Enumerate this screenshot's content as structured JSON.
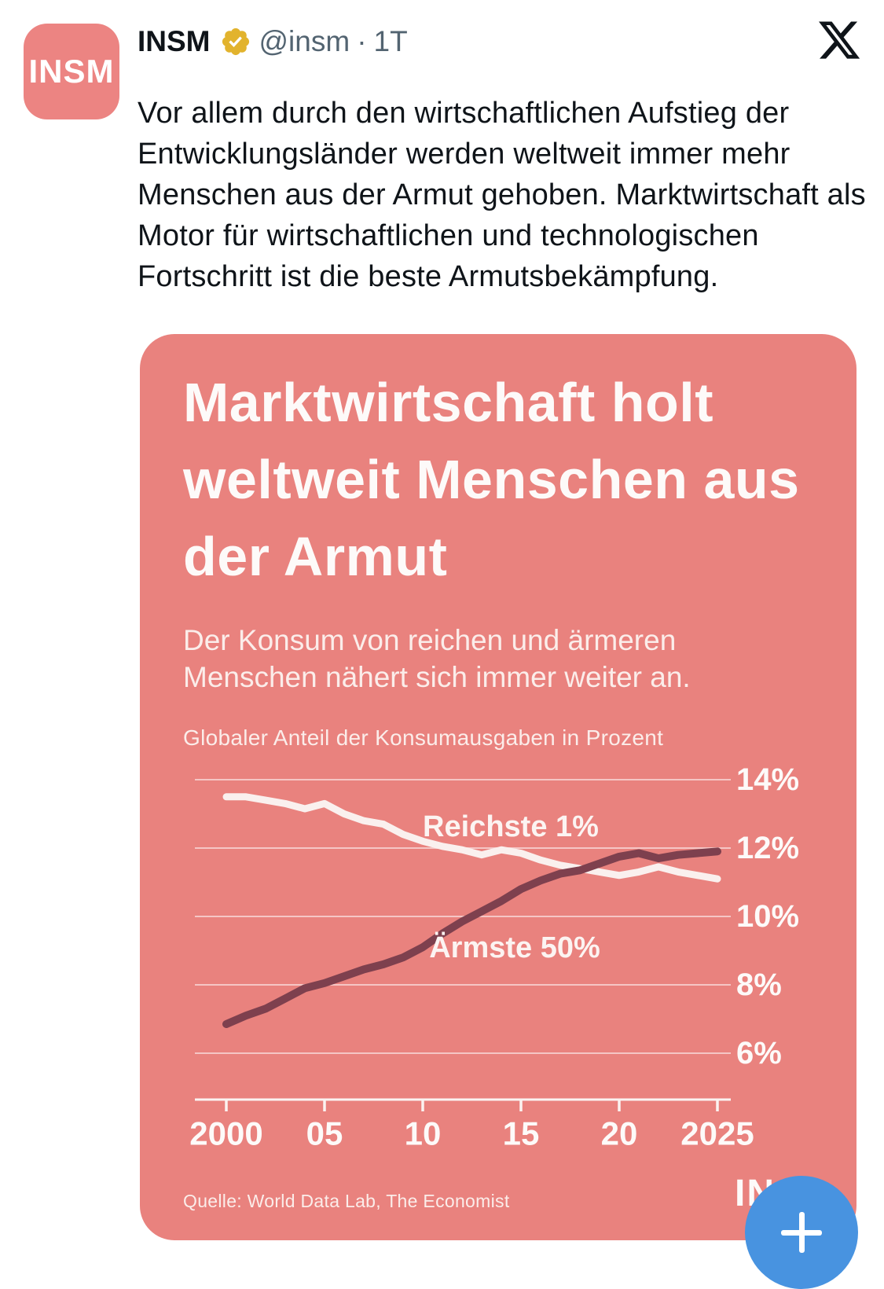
{
  "header": {
    "author": "INSM",
    "avatar_label": "INSM",
    "handle": "@insm",
    "separator": "·",
    "time": "1T",
    "verified_icon": "gold-verified-badge-icon",
    "platform_icon": "x-logo-icon",
    "verified_color": "#E2B32D",
    "text_color": "#0F1419",
    "meta_color": "#536471"
  },
  "tweet_body": "Vor allem durch den wirtschaftlichen Aufstieg der Entwicklungsländer werden weltweit immer mehr Menschen aus der Armut gehoben. Marktwirtschaft als Motor für wirtschaftlichen und technologischen Fortschritt ist die beste Armutsbekämpfung.",
  "card": {
    "bg_color": "#E9827E",
    "title": "Marktwirtschaft holt weltweit Menschen aus der Armut",
    "subtitle": "Der Konsum von reichen und ärmeren Menschen nähert sich immer weiter an.",
    "source": "Quelle: World Data Lab, The Economist",
    "watermark": "IN"
  },
  "chart_data": {
    "type": "line",
    "title": "Globaler Anteil der Konsumausgaben in Prozent",
    "x": [
      2000,
      2001,
      2002,
      2003,
      2004,
      2005,
      2006,
      2007,
      2008,
      2009,
      2010,
      2011,
      2012,
      2013,
      2014,
      2015,
      2016,
      2017,
      2018,
      2019,
      2020,
      2021,
      2022,
      2023,
      2024,
      2025
    ],
    "series": [
      {
        "name": "Reichste 1%",
        "color": "#FAF0EE",
        "values": [
          13.5,
          13.5,
          13.4,
          13.3,
          13.15,
          13.3,
          13.0,
          12.8,
          12.7,
          12.4,
          12.2,
          12.05,
          11.95,
          11.8,
          11.95,
          11.85,
          11.65,
          11.5,
          11.4,
          11.3,
          11.2,
          11.3,
          11.45,
          11.3,
          11.2,
          11.1
        ]
      },
      {
        "name": "Ärmste 50%",
        "color": "#7E404E",
        "values": [
          6.85,
          7.1,
          7.3,
          7.6,
          7.9,
          8.05,
          8.25,
          8.45,
          8.6,
          8.8,
          9.1,
          9.5,
          9.85,
          10.15,
          10.45,
          10.8,
          11.05,
          11.25,
          11.35,
          11.55,
          11.75,
          11.85,
          11.7,
          11.8,
          11.85,
          11.9
        ]
      }
    ],
    "y_ticks": [
      {
        "value": 14,
        "label": "14%"
      },
      {
        "value": 12,
        "label": "12%"
      },
      {
        "value": 10,
        "label": "10%"
      },
      {
        "value": 8,
        "label": "8%"
      },
      {
        "value": 6,
        "label": "6%"
      }
    ],
    "x_ticks": [
      {
        "value": 2000,
        "label": "2000"
      },
      {
        "value": 2005,
        "label": "05"
      },
      {
        "value": 2010,
        "label": "10"
      },
      {
        "value": 2015,
        "label": "15"
      },
      {
        "value": 2020,
        "label": "20"
      },
      {
        "value": 2025,
        "label": "2025"
      }
    ],
    "xlim": [
      2000,
      2025
    ],
    "ylim": [
      5.2,
      14.8
    ],
    "grid": true,
    "legend_position": "inline-labels-on-lines",
    "grid_color": "rgba(255,255,255,0.55)",
    "axis_color": "#FBF3F1",
    "label_color": "#FDFAF9"
  },
  "fab": {
    "icon": "plus-icon",
    "color": "#4893E0"
  }
}
